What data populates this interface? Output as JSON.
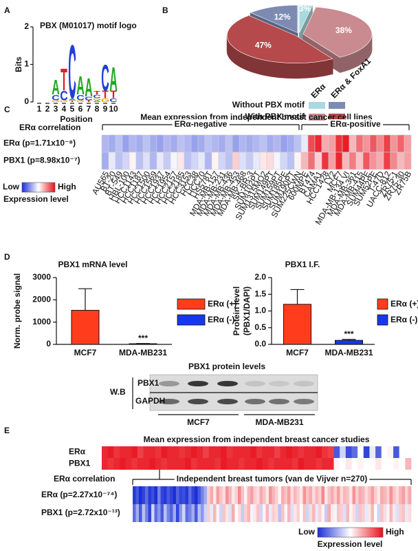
{
  "panel_labels": [
    "A",
    "B",
    "C",
    "D",
    "E"
  ],
  "chart_data": [
    {
      "type": "logo",
      "title": "PBX (M01017) motif logo",
      "ylabel": "Bits",
      "xlabel": "Position",
      "ylim": [
        0,
        2
      ],
      "yticks": [
        0,
        1,
        2
      ],
      "xlim": [
        0.5,
        10.5
      ],
      "xticks": [
        1,
        2,
        3,
        4,
        5,
        6,
        7,
        8,
        9,
        10
      ],
      "letter_colors": {
        "A": "#22a822",
        "C": "#2040d8",
        "G": "#f0a000",
        "T": "#e02020"
      },
      "letters": [
        {
          "x": 3,
          "letter": "G",
          "bits": 0.05
        },
        {
          "x": 3,
          "letter": "C",
          "bits": 0.15
        },
        {
          "x": 3,
          "letter": "A",
          "bits": 0.4
        },
        {
          "x": 4,
          "letter": "G",
          "bits": 0.05
        },
        {
          "x": 4,
          "letter": "C",
          "bits": 0.25
        },
        {
          "x": 4,
          "letter": "T",
          "bits": 0.6
        },
        {
          "x": 5,
          "letter": "T",
          "bits": 0.05
        },
        {
          "x": 5,
          "letter": "A",
          "bits": 0.05
        },
        {
          "x": 5,
          "letter": "C",
          "bits": 1.45
        },
        {
          "x": 6,
          "letter": "G",
          "bits": 0.05
        },
        {
          "x": 6,
          "letter": "C",
          "bits": 0.15
        },
        {
          "x": 6,
          "letter": "A",
          "bits": 0.5
        },
        {
          "x": 7,
          "letter": "T",
          "bits": 0.05
        },
        {
          "x": 7,
          "letter": "C",
          "bits": 0.1
        },
        {
          "x": 7,
          "letter": "A",
          "bits": 0.5
        },
        {
          "x": 8,
          "letter": "A",
          "bits": 0.05
        },
        {
          "x": 8,
          "letter": "G",
          "bits": 0.05
        },
        {
          "x": 8,
          "letter": "C",
          "bits": 0.1
        },
        {
          "x": 8,
          "letter": "T",
          "bits": 0.1
        },
        {
          "x": 9,
          "letter": "G",
          "bits": 0.1
        },
        {
          "x": 9,
          "letter": "T",
          "bits": 0.2
        },
        {
          "x": 9,
          "letter": "C",
          "bits": 0.7
        },
        {
          "x": 10,
          "letter": "C",
          "bits": 0.1
        },
        {
          "x": 10,
          "letter": "T",
          "bits": 0.2
        },
        {
          "x": 10,
          "letter": "A",
          "bits": 0.65
        }
      ]
    },
    {
      "type": "pie",
      "values": [
        3,
        38,
        47,
        12
      ],
      "value_labels": [
        "3%",
        "38%",
        "47%",
        "12%"
      ],
      "colors": [
        "#a9d9df",
        "#c98a90",
        "#b5494c",
        "#7d8bb3"
      ],
      "legend": {
        "columns": [
          "ERα",
          "ERα & FoxA1"
        ],
        "rows": [
          "Without PBX motif",
          "With PBX motif"
        ],
        "cells": [
          [
            0,
            3
          ],
          [
            1,
            2
          ]
        ]
      }
    },
    {
      "type": "heatmap",
      "title": "Mean expression from independent breast cancer cell lines",
      "row_header": "ERα correlation",
      "groups": [
        {
          "name": "ERα-negative",
          "columns": [
            "AU565",
            "BT-20",
            "BT-549",
            "HBL-100",
            "HCC1143",
            "HCC1187",
            "HCC1500",
            "HCC1569",
            "HCC1937",
            "HCC1954",
            "HCC2157",
            "HCC2185",
            "HCC3153",
            "HCC38",
            "HCC70",
            "HS578T",
            "MDA-MB-157",
            "MDA-MB-231",
            "MDA-MB-436",
            "MDA-MB-453",
            "MDA-MB-468",
            "SK-BR-3",
            "SUM102PT",
            "SUM1315MO2",
            "SUM149PT",
            "SUM159PT",
            "SUM185PE",
            "SUM190PT",
            "SUM225CWN"
          ]
        },
        {
          "name": "ERα-positive",
          "columns": [
            "600MPE",
            "BT474",
            "CAMA1",
            "HCC1428",
            "LY2",
            "MCF7",
            "MDA-MB-134 VI",
            "MDA-MB-361",
            "MDA-MB-415",
            "SUM44PE",
            "SUM52PE",
            "T-47D",
            "UACC-812",
            "ZR75-1",
            "ZR75-30",
            "ZR75B"
          ]
        }
      ],
      "rows": [
        {
          "name": "ERα (p=1.71x10⁻⁸)",
          "values": [
            -0.35,
            -0.4,
            -0.3,
            -0.45,
            -0.35,
            -0.4,
            -0.3,
            -0.4,
            -0.45,
            -0.35,
            -0.4,
            -0.3,
            -0.35,
            -0.45,
            -0.4,
            -0.3,
            -0.35,
            -0.4,
            -0.3,
            -0.45,
            -0.35,
            -0.4,
            -0.35,
            -0.3,
            -0.4,
            -0.35,
            -0.45,
            -0.4,
            -0.3,
            -0.1,
            0.75,
            0.9,
            0.35,
            0.4,
            0.85,
            0.95,
            0.3,
            0.6,
            0.45,
            0.7,
            0.5,
            0.8,
            0.45,
            0.65,
            0.4
          ]
        },
        {
          "name": "PBX1 (p=8.98x10⁻⁷)",
          "values": [
            -0.4,
            -0.1,
            -0.3,
            -0.2,
            0.05,
            -0.3,
            -0.15,
            -0.35,
            -0.1,
            -0.25,
            -0.05,
            0.1,
            -0.3,
            -0.2,
            -0.1,
            -0.35,
            0.05,
            -0.2,
            -0.3,
            0.2,
            -0.15,
            -0.25,
            -0.1,
            0.1,
            0.15,
            -0.05,
            -0.2,
            -0.3,
            0.05,
            0.3,
            0.6,
            0.2,
            0.85,
            0.4,
            0.9,
            0.3,
            0.55,
            0.25,
            0.7,
            0.45,
            0.35,
            0.8,
            0.5,
            0.3,
            0.4
          ]
        }
      ],
      "zlim": [
        -1,
        1
      ],
      "colors": [
        "#1a2fd6",
        "#ffffff",
        "#e8101a"
      ],
      "legend": {
        "low": "Low",
        "high": "High",
        "title": "Expression level"
      }
    },
    {
      "type": "bar",
      "title": "PBX1 mRNA level",
      "ylabel": "Norm. probe signal",
      "categories": [
        "MCF7",
        "MDA-MB231"
      ],
      "ylim": [
        0,
        3000
      ],
      "yticks": [
        0,
        1000,
        2000,
        3000
      ],
      "series": [
        {
          "name": "ERα (+)",
          "color": "#ff3d1c",
          "values": [
            1530,
            null
          ],
          "errors": [
            970,
            null
          ]
        },
        {
          "name": "ERα (-)",
          "color": "#1637ef",
          "values": [
            null,
            30
          ],
          "errors": [
            null,
            10
          ]
        }
      ],
      "annotations": [
        {
          "category": 1,
          "text": "***"
        }
      ]
    },
    {
      "type": "bar",
      "title": "PBX1 I.F.",
      "ylabel": [
        "Protein level",
        "(PBX1/DAPI)"
      ],
      "categories": [
        "MCF7",
        "MDA-MB231"
      ],
      "ylim": [
        0,
        2
      ],
      "yticks": [
        {
          "value": 0,
          "label": "0.0"
        },
        0.5,
        {
          "value": 1,
          "label": "1.0"
        },
        1.5,
        {
          "value": 2,
          "label": "2.0"
        }
      ],
      "series": [
        {
          "name": "ERα (+)",
          "color": "#ff3d1c",
          "values": [
            1.2,
            null
          ],
          "errors": [
            0.44,
            null
          ]
        },
        {
          "name": "ERα (-)",
          "color": "#1637ef",
          "values": [
            null,
            0.12
          ],
          "errors": [
            null,
            0.03
          ]
        }
      ],
      "annotations": [
        {
          "category": 1,
          "text": "***"
        }
      ]
    },
    {
      "type": "heatmap",
      "title": "Mean expression from independent breast cancer studies",
      "rows": [
        {
          "name": "ERα",
          "values": [
            0.9,
            0.95,
            0.85,
            0.9,
            0.9,
            0.95,
            0.8,
            0.9,
            0.9,
            0.85,
            0.95,
            0.9,
            0.9,
            0.85,
            0.9,
            0.95,
            0.9,
            0.8,
            0.9,
            0.9,
            0.95,
            0.85,
            0.9,
            0.9,
            0.9,
            0.95,
            0.85,
            0.9,
            0.9,
            0.8,
            0.9,
            0.95,
            0.9,
            0.85,
            0.9,
            0.9,
            0.95,
            0.85,
            0.8,
            -0.8,
            -0.2,
            -0.85,
            -0.7,
            0,
            -0.9,
            -0.1,
            -0.75,
            0,
            0.05,
            -0.8,
            0,
            0
          ]
        },
        {
          "name": "PBX1",
          "values": [
            0.9,
            0.85,
            0.9,
            0.95,
            0.9,
            0.85,
            0.9,
            0.9,
            0.95,
            0.9,
            0.85,
            0.9,
            0.9,
            0.9,
            0.95,
            0.85,
            0.9,
            0.9,
            0.9,
            0.85,
            0.95,
            0.9,
            0.9,
            0.85,
            0.9,
            0.9,
            0.95,
            0.9,
            0.85,
            0.9,
            0.9,
            0.9,
            0.85,
            0.95,
            0.9,
            0.9,
            0.85,
            0.9,
            0.9,
            0.05,
            0,
            0.1,
            0,
            0.05,
            0,
            0,
            0.1,
            0,
            0,
            0.05,
            0,
            0.3
          ]
        }
      ],
      "zlim": [
        -1,
        1
      ],
      "colors": [
        "#1a2fd6",
        "#ffffff",
        "#e8101a"
      ]
    },
    {
      "type": "heatmap",
      "title": "Independent breast tumors  (van de Vijver n=270)",
      "row_header": "ERα correlation",
      "rows": [
        {
          "name": "ERα (p=2.27x10⁻⁷⁴)",
          "values": [
            -0.95,
            -0.8,
            -1,
            -0.9,
            -0.7,
            -0.95,
            -0.85,
            -1,
            -0.6,
            -0.9,
            -0.95,
            -0.8,
            -0.9,
            -1,
            -0.75,
            -0.9,
            -0.85,
            -0.95,
            -0.7,
            -0.9,
            -1,
            -0.8,
            -0.6,
            -0.4,
            0.2,
            0.35,
            0.1,
            0.4,
            0.25,
            0.15,
            0.45,
            0.3,
            0.1,
            0.2,
            0.5,
            0.25,
            0.05,
            0.3,
            0.4,
            0.2,
            0.15,
            0.35,
            0.25,
            0.1,
            0.45,
            0.3,
            0.2,
            0.05,
            0.35,
            0.25,
            0.4,
            0.15,
            0.3,
            0.2,
            0.1,
            0.45,
            0.25,
            0.35,
            0.15,
            0.3,
            0.2,
            0.5,
            0.1,
            0.25,
            0.35,
            0.2,
            0.4,
            0.15,
            0.3,
            0.25,
            0.1,
            0.45,
            0.2,
            0.35,
            0.3,
            0.15,
            0.25,
            0.4,
            0.2,
            0.1,
            0.35,
            0.3,
            0.2,
            0.45,
            0.25,
            0.15,
            0.3,
            0.4,
            0.2,
            0.35
          ]
        },
        {
          "name": "PBX1 (p=2.72x10⁻¹³)",
          "values": [
            -0.7,
            -0.4,
            -0.8,
            -0.3,
            -0.6,
            -0.9,
            -0.2,
            -0.7,
            -0.5,
            -0.8,
            -0.3,
            -0.6,
            -0.75,
            -0.4,
            -0.9,
            -0.5,
            -0.2,
            -0.7,
            -0.6,
            -0.4,
            -0.8,
            -0.3,
            -0.5,
            -0.2,
            0.2,
            -0.1,
            0.3,
            0.05,
            -0.2,
            0.25,
            0.1,
            -0.15,
            0.35,
            0,
            0.15,
            -0.25,
            0.2,
            0.3,
            -0.05,
            0.1,
            0.25,
            -0.2,
            0.05,
            0.3,
            -0.1,
            0.2,
            0.15,
            -0.3,
            0.25,
            0.05,
            0.3,
            -0.15,
            0.1,
            0.2,
            0,
            0.25,
            -0.2,
            0.15,
            0.3,
            -0.1,
            0.2,
            0.05,
            -0.25,
            0.35,
            0.1,
            -0.05,
            0.25,
            0.2,
            -0.15,
            0.3,
            0.05,
            0.15,
            -0.2,
            0.25,
            0.2,
            -0.1,
            0.1,
            0.3,
            0,
            -0.2,
            0.25,
            0.15,
            -0.05,
            0.3,
            0.1,
            -0.15,
            0.2,
            0.25,
            -0.1,
            0.15
          ]
        }
      ],
      "zlim": [
        -1,
        1
      ],
      "colors": [
        "#1a2fd6",
        "#ffffff",
        "#e8101a"
      ],
      "legend": {
        "low": "Low",
        "high": "High",
        "title": "Expression level"
      }
    }
  ],
  "western_blot": {
    "title": "PBX1 protein levels",
    "method": "W.B",
    "rows": [
      "PBX1",
      "GAPDH"
    ],
    "groups": [
      "MCF7",
      "MDA-MB231"
    ]
  }
}
